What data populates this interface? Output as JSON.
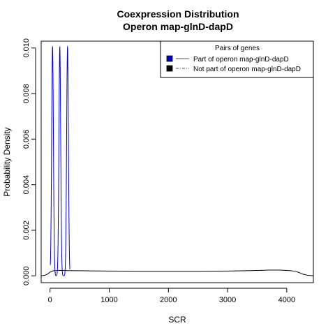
{
  "chart_data": {
    "type": "line",
    "title": "Coexpression Distribution",
    "subtitle": "Operon map-glnD-dapD",
    "xlabel": "SCR",
    "ylabel": "Probability Density",
    "xlim": [
      -150,
      4450
    ],
    "ylim": [
      -0.0003,
      0.0103
    ],
    "xticks": [
      0,
      1000,
      2000,
      3000,
      4000
    ],
    "xtick_labels": [
      "0",
      "1000",
      "2000",
      "3000",
      "4000"
    ],
    "yticks": [
      0.0,
      0.002,
      0.004,
      0.006,
      0.008,
      0.01
    ],
    "ytick_labels": [
      "0.000",
      "0.002",
      "0.004",
      "0.006",
      "0.008",
      "0.010"
    ],
    "grid": false,
    "legend": {
      "title": "Pairs of genes",
      "placement": "top-right",
      "entries": [
        "Part of operon map-glnD-dapD",
        "Not part of operon map-glnD-dapD"
      ]
    },
    "series": [
      {
        "name": "Part of operon map-glnD-dapD",
        "color": "#0000cc",
        "line_style": "solid",
        "peaks": [
          {
            "center": 42,
            "height": 0.01005,
            "sd": 15
          },
          {
            "center": 165,
            "height": 0.01005,
            "sd": 15
          },
          {
            "center": 295,
            "height": 0.01005,
            "sd": 15
          }
        ],
        "x_range": [
          5,
          335
        ]
      },
      {
        "name": "Not part of operon map-glnD-dapD",
        "color": "#000000",
        "line_style": "dash-dot",
        "x": [
          -150,
          -90,
          -40,
          0,
          50,
          150,
          300,
          600,
          1000,
          1500,
          2000,
          2500,
          3000,
          3400,
          3700,
          3900,
          4050,
          4150,
          4200,
          4280,
          4360,
          4450
        ],
        "y": [
          0.0,
          2e-05,
          8e-05,
          0.00016,
          0.00022,
          0.00024,
          0.00023,
          0.00022,
          0.00021,
          0.0002,
          0.0002,
          0.0002,
          0.00021,
          0.00023,
          0.00025,
          0.00025,
          0.00023,
          0.0002,
          0.00015,
          7e-05,
          2e-05,
          0.0
        ]
      }
    ]
  }
}
